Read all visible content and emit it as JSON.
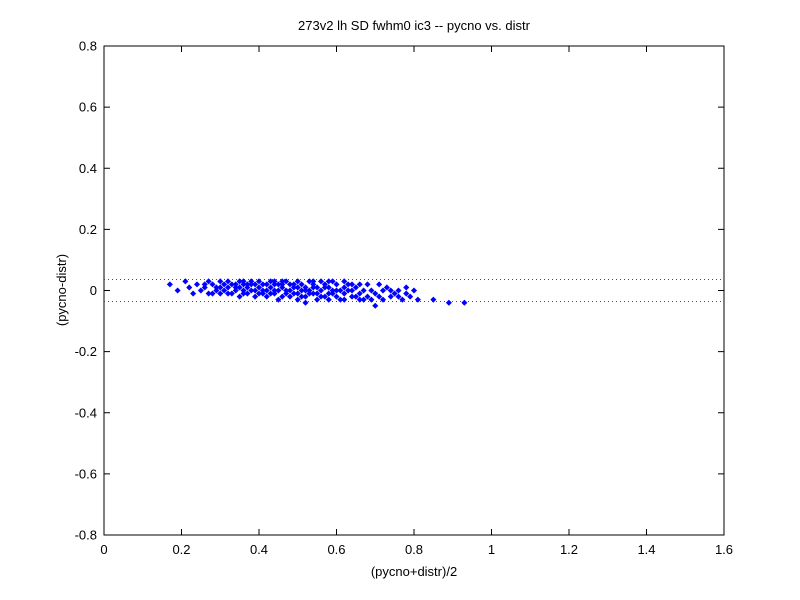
{
  "chart_data": {
    "type": "scatter",
    "title": "273v2 lh SD fwhm0 ic3 -- pycno vs. distr",
    "xlabel": "(pycno+distr)/2",
    "ylabel": "(pycno-distr)",
    "xlim": [
      0,
      1.6
    ],
    "ylim": [
      -0.8,
      0.8
    ],
    "xticks": [
      "0",
      "0.2",
      "0.4",
      "0.6",
      "0.8",
      "1",
      "1.2",
      "1.4",
      "1.6"
    ],
    "yticks": [
      "0.8",
      "0.6",
      "0.4",
      "0.2",
      "0",
      "-0.2",
      "-0.4",
      "-0.6",
      "-0.8"
    ],
    "grid": false,
    "marker_color": "#0000ff",
    "reference_lines": [
      {
        "y": 0.036,
        "style": "dotted",
        "color": "#ff0000"
      },
      {
        "y": -0.036,
        "style": "dotted",
        "color": "#ff0000"
      }
    ],
    "points": [
      [
        0.17,
        0.02
      ],
      [
        0.19,
        0.0
      ],
      [
        0.21,
        0.03
      ],
      [
        0.22,
        0.01
      ],
      [
        0.23,
        -0.01
      ],
      [
        0.24,
        0.02
      ],
      [
        0.25,
        0.0
      ],
      [
        0.26,
        0.01
      ],
      [
        0.27,
        0.03
      ],
      [
        0.27,
        -0.01
      ],
      [
        0.28,
        0.02
      ],
      [
        0.29,
        0.0
      ],
      [
        0.29,
        0.01
      ],
      [
        0.3,
        0.03
      ],
      [
        0.3,
        -0.01
      ],
      [
        0.31,
        0.02
      ],
      [
        0.31,
        0.0
      ],
      [
        0.32,
        0.01
      ],
      [
        0.32,
        0.03
      ],
      [
        0.33,
        -0.01
      ],
      [
        0.33,
        0.02
      ],
      [
        0.34,
        0.0
      ],
      [
        0.34,
        0.01
      ],
      [
        0.35,
        0.03
      ],
      [
        0.35,
        -0.02
      ],
      [
        0.36,
        0.02
      ],
      [
        0.36,
        0.0
      ],
      [
        0.37,
        0.01
      ],
      [
        0.37,
        -0.01
      ],
      [
        0.38,
        0.03
      ],
      [
        0.38,
        0.02
      ],
      [
        0.39,
        0.0
      ],
      [
        0.39,
        -0.02
      ],
      [
        0.4,
        0.01
      ],
      [
        0.4,
        0.03
      ],
      [
        0.41,
        -0.01
      ],
      [
        0.41,
        0.02
      ],
      [
        0.42,
        0.0
      ],
      [
        0.42,
        -0.02
      ],
      [
        0.43,
        0.01
      ],
      [
        0.43,
        0.03
      ],
      [
        0.44,
        -0.01
      ],
      [
        0.44,
        0.02
      ],
      [
        0.45,
        0.0
      ],
      [
        0.45,
        -0.03
      ],
      [
        0.46,
        0.01
      ],
      [
        0.46,
        0.02
      ],
      [
        0.47,
        -0.01
      ],
      [
        0.47,
        0.03
      ],
      [
        0.48,
        0.0
      ],
      [
        0.48,
        -0.02
      ],
      [
        0.49,
        0.01
      ],
      [
        0.49,
        0.02
      ],
      [
        0.5,
        -0.01
      ],
      [
        0.5,
        -0.03
      ],
      [
        0.51,
        0.0
      ],
      [
        0.51,
        0.02
      ],
      [
        0.52,
        0.01
      ],
      [
        0.52,
        -0.02
      ],
      [
        0.53,
        0.03
      ],
      [
        0.53,
        0.0
      ],
      [
        0.54,
        -0.01
      ],
      [
        0.54,
        0.02
      ],
      [
        0.55,
        0.01
      ],
      [
        0.55,
        -0.03
      ],
      [
        0.56,
        0.03
      ],
      [
        0.56,
        0.0
      ],
      [
        0.57,
        -0.02
      ],
      [
        0.57,
        0.02
      ],
      [
        0.58,
        0.01
      ],
      [
        0.58,
        -0.01
      ],
      [
        0.59,
        0.0
      ],
      [
        0.59,
        0.03
      ],
      [
        0.6,
        -0.02
      ],
      [
        0.6,
        0.02
      ],
      [
        0.61,
        0.0
      ],
      [
        0.61,
        -0.03
      ],
      [
        0.62,
        0.01
      ],
      [
        0.62,
        -0.01
      ],
      [
        0.63,
        0.02
      ],
      [
        0.64,
        0.0
      ],
      [
        0.64,
        -0.02
      ],
      [
        0.65,
        0.01
      ],
      [
        0.66,
        -0.01
      ],
      [
        0.66,
        -0.03
      ],
      [
        0.67,
        0.0
      ],
      [
        0.68,
        0.02
      ],
      [
        0.68,
        -0.02
      ],
      [
        0.69,
        0.0
      ],
      [
        0.7,
        -0.01
      ],
      [
        0.7,
        -0.05
      ],
      [
        0.71,
        0.02
      ],
      [
        0.72,
        0.0
      ],
      [
        0.72,
        -0.03
      ],
      [
        0.73,
        0.01
      ],
      [
        0.74,
        -0.02
      ],
      [
        0.75,
        -0.01
      ],
      [
        0.76,
        0.0
      ],
      [
        0.77,
        -0.03
      ],
      [
        0.78,
        -0.01
      ],
      [
        0.79,
        -0.02
      ],
      [
        0.8,
        0.0
      ],
      [
        0.81,
        -0.03
      ],
      [
        0.85,
        -0.03
      ],
      [
        0.89,
        -0.04
      ],
      [
        0.93,
        -0.04
      ],
      [
        0.35,
        0.01
      ],
      [
        0.36,
        -0.01
      ],
      [
        0.37,
        0.02
      ],
      [
        0.38,
        0.0
      ],
      [
        0.39,
        0.02
      ],
      [
        0.4,
        -0.01
      ],
      [
        0.41,
        0.0
      ],
      [
        0.42,
        0.02
      ],
      [
        0.43,
        -0.01
      ],
      [
        0.44,
        0.0
      ],
      [
        0.45,
        0.02
      ],
      [
        0.46,
        -0.02
      ],
      [
        0.47,
        0.0
      ],
      [
        0.48,
        0.02
      ],
      [
        0.49,
        -0.01
      ],
      [
        0.5,
        0.01
      ],
      [
        0.51,
        -0.02
      ],
      [
        0.52,
        0.0
      ],
      [
        0.53,
        -0.01
      ],
      [
        0.54,
        0.01
      ],
      [
        0.55,
        -0.01
      ],
      [
        0.56,
        -0.02
      ],
      [
        0.57,
        0.01
      ],
      [
        0.58,
        -0.03
      ],
      [
        0.59,
        -0.01
      ],
      [
        0.6,
        0.0
      ],
      [
        0.62,
        -0.03
      ],
      [
        0.63,
        0.0
      ],
      [
        0.65,
        -0.02
      ],
      [
        0.67,
        -0.03
      ],
      [
        0.26,
        0.02
      ],
      [
        0.28,
        -0.01
      ],
      [
        0.3,
        0.01
      ],
      [
        0.32,
        -0.01
      ],
      [
        0.34,
        0.02
      ],
      [
        0.36,
        0.03
      ],
      [
        0.44,
        0.03
      ],
      [
        0.46,
        0.03
      ],
      [
        0.5,
        0.03
      ],
      [
        0.54,
        0.03
      ],
      [
        0.58,
        0.03
      ],
      [
        0.62,
        0.03
      ],
      [
        0.64,
        0.02
      ],
      [
        0.66,
        0.02
      ],
      [
        0.69,
        -0.03
      ],
      [
        0.71,
        -0.02
      ],
      [
        0.74,
        0.0
      ],
      [
        0.76,
        -0.02
      ],
      [
        0.78,
        0.01
      ],
      [
        0.52,
        -0.04
      ]
    ]
  }
}
